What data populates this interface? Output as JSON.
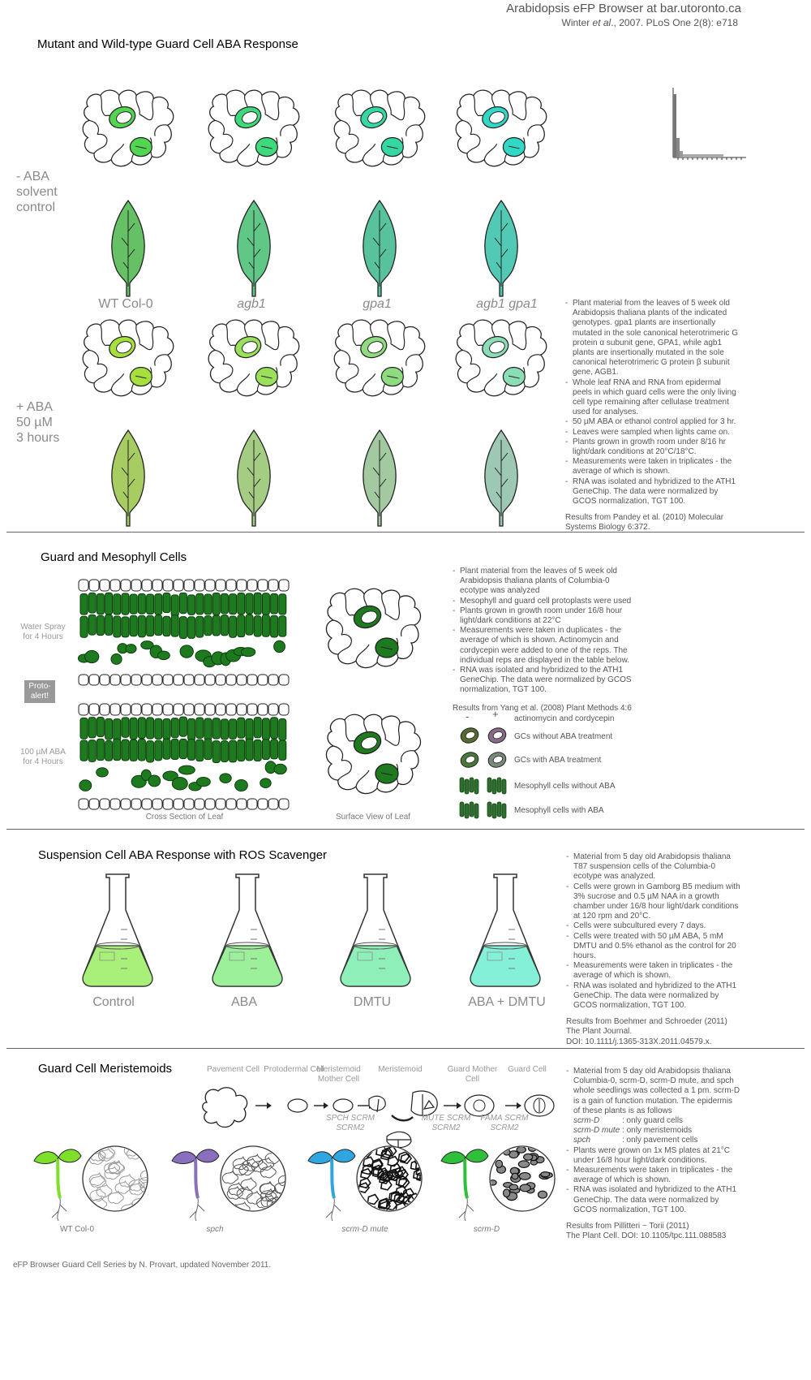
{
  "header": {
    "title": "Arabidopsis eFP Browser at bar.utoronto.ca",
    "citation_pre": "Winter ",
    "citation_em": "et al",
    "citation_post": "., 2007. PLoS One 2(8): e718"
  },
  "sec1": {
    "title": "Mutant and Wild-type Guard Cell ABA Response",
    "row1_label": [
      "- ABA",
      "solvent",
      "control"
    ],
    "row2_label": [
      "+ ABA",
      "50 µM",
      "3 hours"
    ],
    "genotypes": [
      "WT Col-0",
      "agb1",
      "gpa1",
      "agb1 gpa1"
    ],
    "notes": [
      "Plant material from the leaves of 5 week old Arabidopsis thaliana plants of the indicated genotypes. gpa1 plants are insertionally mutated in the sole canonical heterotrimeric G protein α subunit gene, GPA1, while agb1 plants are insertionally mutated in the sole canonical heterotrimeric G protein β subunit gene, AGB1.",
      "Whole leaf RNA and RNA from epidermal peels in which guard cells were the only living cell type remaining after cellulase treatment used for analyses.",
      "50 µM ABA or ethanol control applied for 3 hr.",
      "Leaves were sampled when lights came on.",
      "Plants grown in growth room under 8/16 hr light/dark conditions at 20°C/18°C.",
      "Measurements were taken in triplicates - the average of which is shown.",
      "RNA was isolated and hybridized to the ATH1 GeneChip. The data were normalized by GCOS normalization, TGT 100."
    ],
    "result": "Results from Pandey et al. (2010) Molecular Systems Biology 6:372.",
    "colors_minus": [
      "#52d652",
      "#3fd97d",
      "#35d8a3",
      "#31d8c5"
    ],
    "colors_plus": [
      "#a5e03c",
      "#9be05a",
      "#8fdc80",
      "#8bddb6"
    ],
    "leaf_minus": [
      "#66c066",
      "#60c786",
      "#58c29d",
      "#52c9b5"
    ],
    "leaf_plus": [
      "#a7cc62",
      "#a4cc82",
      "#a2c9a0",
      "#9cc8b4"
    ]
  },
  "sec2": {
    "title": "Guard and Mesophyll Cells",
    "water_label": [
      "Water Spray",
      "for 4 Hours"
    ],
    "aba_label": [
      "100 µM ABA",
      "for 4 Hours"
    ],
    "proto_btn": [
      "Proto-",
      "alert!"
    ],
    "caption_cross": "Cross Section of Leaf",
    "caption_surface": "Surface View of Leaf",
    "notes": [
      "Plant material from the leaves of 5 week old Arabidopsis thaliana plants of Columbia-0 ecotype was analyzed",
      "Mesophyll and guard cell protoplasts were used",
      "Plants grown in growth room under 16/8 hour light/dark conditions at 22°C",
      "Measurements were taken in duplicates - the average of which is shown. Actinomycin and cordycepin were added to one of the reps. The individual reps are displayed in the table below.",
      "RNA was isolated and hybridized to the ATH1 GeneChip. The data were normalized by GCOS normalization, TGT 100."
    ],
    "result": "Results from Yang et al. (2008) Plant Methods 4:6",
    "legend_minus": "-",
    "legend_plus": "+",
    "legend_rows": [
      "actinomycin and cordycepin",
      "GCs without ABA treatment",
      "GCs with ABA treatment",
      "Mesophyll cells without ABA",
      "Mesophyll cells with ABA"
    ],
    "green": "#1e7a1e"
  },
  "sec3": {
    "title": "Suspension Cell ABA Response with ROS Scavenger",
    "flasks": [
      "Control",
      "ABA",
      "DMTU",
      "ABA + DMTU"
    ],
    "flask_colors": [
      "#a8f07a",
      "#9cf09a",
      "#8ef0b8",
      "#84f0d8"
    ],
    "notes": [
      "Material from 5 day old Arabidopsis thaliana T87 suspension cells of the Columbia-0 ecotype was analyzed.",
      "Cells were grown in Gamborg B5 medium with 3% sucrose and 0.5 µM NAA in a growth chamber under 16/8 hour light/dark conditions at 120 rpm and 20°C.",
      "Cells were subcultured every 7 days.",
      "Cells were treated with 50 µM ABA, 5 mM DMTU and 0.5% ethanol as the control for 20 hours.",
      "Measurements were taken in triplicates - the average of which is shown.",
      "RNA was isolated and hybridized to the ATH1 GeneChip. The data were normalized by GCOS normalization, TGT 100."
    ],
    "result": [
      "Results from Boehmer and Schroeder (2011)",
      "The Plant Journal.",
      "DOI: 10.1111/j.1365-313X.2011.04579.x."
    ]
  },
  "sec4": {
    "title": "Guard Cell Meristemoids",
    "stages": [
      "Pavement Cell",
      "Protodermal Cell",
      "Meristemoid Mother Cell",
      "Meristemoid",
      "Guard Mother Cell",
      "Guard Cell"
    ],
    "genes": [
      "SPCH SCRM SCRM2",
      "MUTE SCRM SCRM2",
      "FAMA SCRM SCRM2"
    ],
    "seedlings": [
      "WT Col-0",
      "spch",
      "scrm-D mute",
      "scrm-D"
    ],
    "seedling_colors": [
      "#7ee02a",
      "#8a6fbf",
      "#2fa6e0",
      "#2fbf3a"
    ],
    "notes": [
      "Material from 5 day old Arabidopsis thaliana Columbia-0, scrm-D, scrm-D mute, and spch whole seedlings was collected a 1 pm. scrm-D is a gain of function mutation. The epidermis of these plants is as follows",
      "Plants were grown on 1x MS plates at 21°C under 16/8 hour light/dark conditions.",
      "Measurements were taken in triplicates - the average of which is shown.",
      "RNA was isolated and hybridized to the ATH1 GeneChip. The data were normalized by GCOS normalization, TGT 100."
    ],
    "epidermis": [
      {
        "geno": "scrm-D",
        "desc": ": only guard cells"
      },
      {
        "geno": "scrm-D mute",
        "desc": ": only meristemoids"
      },
      {
        "geno": "spch",
        "desc": ": only pavement cells"
      }
    ],
    "result": [
      "Results from Pillitteri ~ Torii (2011)",
      "The Plant Cell. DOI: 10.1105/tpc.111.088583"
    ]
  },
  "footer": "eFP Browser Guard Cell Series by N. Provart, updated November 2011."
}
